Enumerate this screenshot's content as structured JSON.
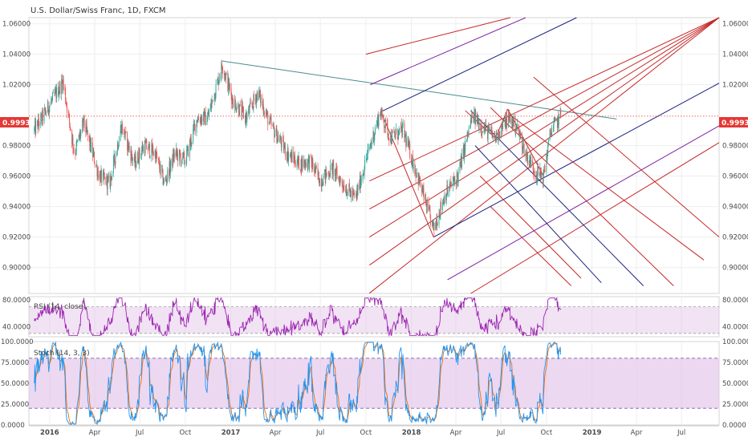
{
  "chart_data": {
    "type": "candlestick",
    "title": "U.S. Dollar/Swiss Franc, 1D, FXCM",
    "last_price": "0.99933",
    "main": {
      "ylim": [
        0.883,
        1.064
      ],
      "yticks": [
        "1.06000",
        "1.04000",
        "1.02000",
        "0.98000",
        "0.96000",
        "0.94000",
        "0.92000",
        "0.90000"
      ],
      "ytick_values": [
        1.06,
        1.04,
        1.02,
        0.98,
        0.96,
        0.94,
        0.92,
        0.9
      ],
      "series": [
        {
          "name": "",
          "points": [
            [
              "2015-12-01",
              0.99
            ],
            [
              "2015-12-20",
              1.0
            ],
            [
              "2016-01-28",
              1.022
            ],
            [
              "2016-02-20",
              0.975
            ],
            [
              "2016-03-10",
              0.995
            ],
            [
              "2016-04-10",
              0.96
            ],
            [
              "2016-05-01",
              0.955
            ],
            [
              "2016-05-25",
              0.993
            ],
            [
              "2016-06-20",
              0.968
            ],
            [
              "2016-07-10",
              0.98
            ],
            [
              "2016-08-01",
              0.975
            ],
            [
              "2016-08-20",
              0.955
            ],
            [
              "2016-09-10",
              0.975
            ],
            [
              "2016-10-01",
              0.97
            ],
            [
              "2016-10-25",
              0.998
            ],
            [
              "2016-11-15",
              0.998
            ],
            [
              "2016-12-15",
              1.033
            ],
            [
              "2017-01-05",
              1.01
            ],
            [
              "2017-02-01",
              0.998
            ],
            [
              "2017-02-25",
              1.015
            ],
            [
              "2017-03-20",
              0.995
            ],
            [
              "2017-04-25",
              0.975
            ],
            [
              "2017-05-20",
              0.968
            ],
            [
              "2017-06-10",
              0.97
            ],
            [
              "2017-07-01",
              0.957
            ],
            [
              "2017-07-25",
              0.965
            ],
            [
              "2017-08-15",
              0.955
            ],
            [
              "2017-09-10",
              0.945
            ],
            [
              "2017-10-01",
              0.97
            ],
            [
              "2017-10-30",
              1.002
            ],
            [
              "2017-11-20",
              0.985
            ],
            [
              "2017-12-15",
              0.99
            ],
            [
              "2018-01-20",
              0.953
            ],
            [
              "2018-02-15",
              0.925
            ],
            [
              "2018-03-10",
              0.948
            ],
            [
              "2018-04-05",
              0.96
            ],
            [
              "2018-05-05",
              1.0
            ],
            [
              "2018-05-25",
              0.992
            ],
            [
              "2018-06-20",
              0.985
            ],
            [
              "2018-07-15",
              0.998
            ],
            [
              "2018-08-01",
              0.993
            ],
            [
              "2018-08-20",
              0.975
            ],
            [
              "2018-09-10",
              0.962
            ],
            [
              "2018-09-25",
              0.96
            ],
            [
              "2018-10-10",
              0.99
            ],
            [
              "2018-10-30",
              0.999
            ]
          ]
        }
      ]
    },
    "rsi": {
      "label": "RSI (14, close)",
      "ylim": [
        25,
        85
      ],
      "yticks": [
        "80.0000",
        "40.0000"
      ],
      "ytick_values": [
        80,
        40
      ],
      "band": [
        70,
        30
      ],
      "line_color": "#9c27b0"
    },
    "stoch": {
      "label": "Stoch (14, 3, 3)",
      "ylim": [
        0,
        100
      ],
      "yticks": [
        "100.0000",
        "75.0000",
        "50.0000",
        "25.0000",
        "0.0000"
      ],
      "ytick_values": [
        100,
        75,
        50,
        25,
        0
      ],
      "band": [
        80,
        20
      ],
      "k_color": "#2196f3",
      "d_color": "#ef6c00"
    },
    "x_axis": {
      "labels": [
        "2016",
        "Apr",
        "Jul",
        "Oct",
        "2017",
        "Apr",
        "Jul",
        "Oct",
        "2018",
        "Apr",
        "Jul",
        "Oct",
        "2019",
        "Apr",
        "Jul"
      ],
      "dates": [
        "2016-01-01",
        "2016-04-01",
        "2016-07-01",
        "2016-10-01",
        "2017-01-01",
        "2017-04-01",
        "2017-07-01",
        "2017-10-01",
        "2018-01-01",
        "2018-04-01",
        "2018-07-01",
        "2018-10-01",
        "2019-01-01",
        "2019-04-01",
        "2019-07-01"
      ],
      "range": [
        "2015-11-20",
        "2019-09-15"
      ]
    },
    "grid": true,
    "colors": {
      "up": "#26a69a",
      "down": "#ef5350",
      "price_line": "#e53935",
      "trend_line": "#4a8c8c",
      "fork_red": "#c62828",
      "fork_blue": "#1a237e",
      "fork_purple": "#7b1fa2",
      "band_fill": "#e1bee7"
    }
  }
}
